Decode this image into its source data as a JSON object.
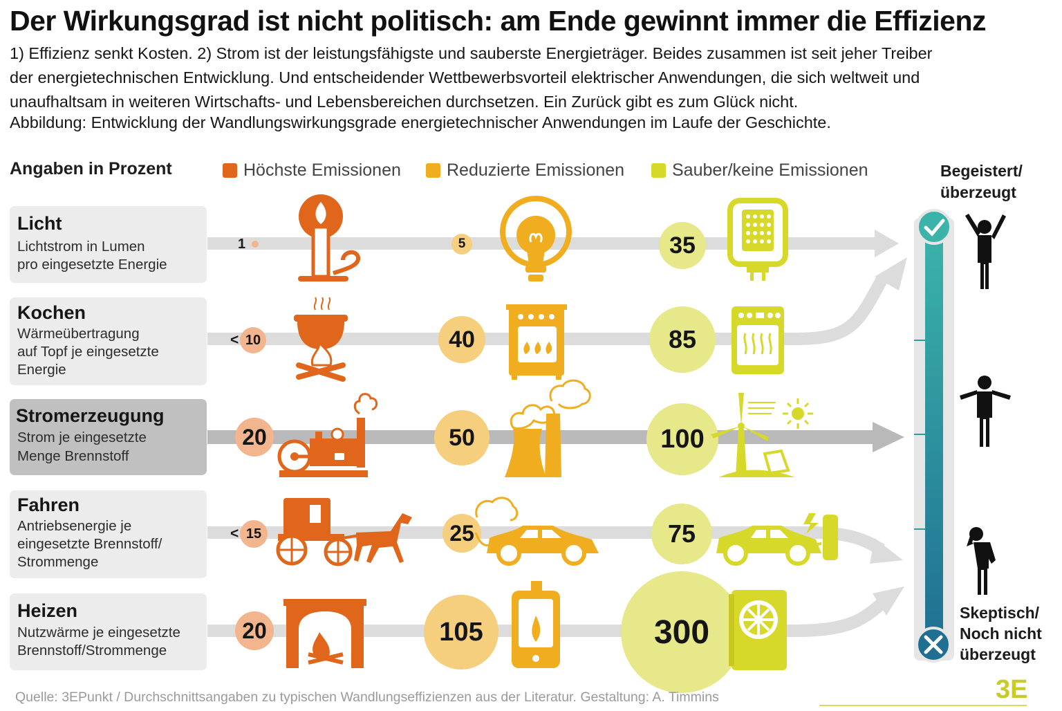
{
  "title": "Der Wirkungsgrad ist nicht politisch: am Ende gewinnt immer die Effizienz",
  "intro_lines": [
    "1) Effizienz senkt Kosten. 2) Strom ist der leistungsfähigste und sauberste Energieträger. Beides zusammen ist seit jeher Treiber",
    "der energietechnischen Entwicklung. Und entscheidender Wettbewerbsvorteil elektrischer Anwendungen, die sich weltweit und",
    "unaufhaltsam in weiteren Wirtschafts- und Lebensbereichen durchsetzen. Ein Zurück gibt es zum Glück nicht."
  ],
  "caption": "Abbildung: Entwicklung der Wandlungswirkungsgrade energietechnischer Anwendungen im Laufe der Geschichte.",
  "units_label": "Angaben in Prozent",
  "legend": [
    {
      "label": "Höchste Emissionen",
      "color": "#e0661c"
    },
    {
      "label": "Reduzierte Emissionen",
      "color": "#f0ad1f"
    },
    {
      "label": "Sauber/keine Emissionen",
      "color": "#d7d92a"
    }
  ],
  "scale": {
    "top_label": [
      "Begeistert/",
      "überzeugt"
    ],
    "bottom_label": [
      "Skeptisch/",
      "Noch nicht",
      "überzeugt"
    ]
  },
  "footer": "Quelle: 3EPunkt / Durchschnittsangaben zu typischen Wandlungseffizienzen aus der Literatur. Gestaltung: A. Timmins",
  "brand": "3E",
  "chart_data": {
    "type": "table",
    "title": "Der Wirkungsgrad ist nicht politisch: am Ende gewinnt immer die Effizienz",
    "columns": [
      "Höchste Emissionen",
      "Reduzierte Emissionen",
      "Sauber/keine Emissionen"
    ],
    "rows": [
      {
        "name": "Licht",
        "subtitle": [
          "Lichtstrom in Lumen",
          "pro eingesetzte Energie"
        ],
        "labels": [
          "1",
          "5",
          "35"
        ],
        "values": [
          1,
          5,
          35
        ],
        "icons": [
          "candle-icon",
          "light-bulb-icon",
          "led-lamp-icon"
        ]
      },
      {
        "name": "Kochen",
        "subtitle": [
          "Wärmeübertragung",
          "auf Topf je eingesetzte",
          "Energie"
        ],
        "labels": [
          "< 10",
          "40",
          "85"
        ],
        "values": [
          10,
          40,
          85
        ],
        "icons": [
          "campfire-pot-icon",
          "gas-stove-icon",
          "electric-oven-icon"
        ]
      },
      {
        "name": "Stromerzeugung",
        "subtitle": [
          "Strom je eingesetzte",
          "Menge Brennstoff"
        ],
        "labels": [
          "20",
          "50",
          "100"
        ],
        "values": [
          20,
          50,
          100
        ],
        "icons": [
          "steam-engine-icon",
          "power-plant-icon",
          "wind-solar-icon"
        ]
      },
      {
        "name": "Fahren",
        "subtitle": [
          "Antriebsenergie je",
          "eingesetzte Brennstoff/",
          "Strommenge"
        ],
        "labels": [
          "< 15",
          "25",
          "75"
        ],
        "values": [
          15,
          25,
          75
        ],
        "icons": [
          "horse-carriage-icon",
          "combustion-car-icon",
          "electric-car-icon"
        ]
      },
      {
        "name": "Heizen",
        "subtitle": [
          "Nutzwärme je eingesetzte",
          "Brennstoff/Strommenge"
        ],
        "labels": [
          "20",
          "105",
          "300"
        ],
        "values": [
          20,
          105,
          300
        ],
        "icons": [
          "fireplace-icon",
          "gas-boiler-icon",
          "heat-pump-icon"
        ]
      }
    ]
  }
}
